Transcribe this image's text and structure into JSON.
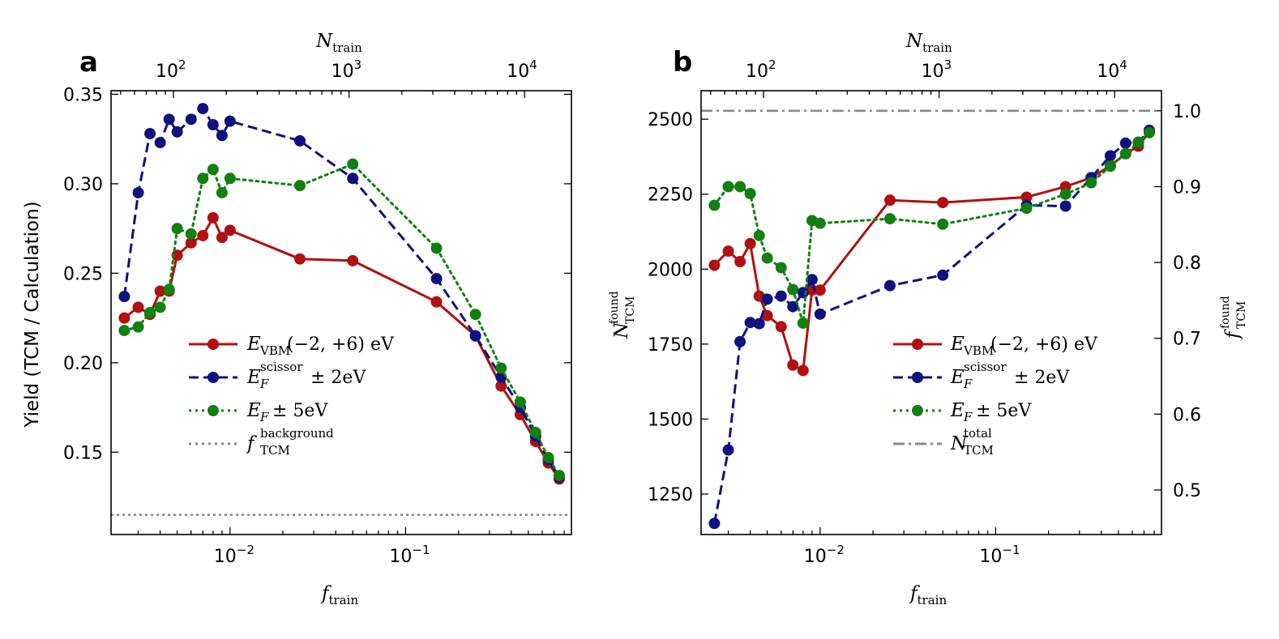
{
  "colors": {
    "red": "#b01010",
    "blue": "#101080",
    "green": "#108010",
    "gray": "#8a8a8a"
  },
  "labels": {
    "ntrain_main": "N",
    "ntrain_sub": "train",
    "ftrain_main": "f",
    "ftrain_sub": "train",
    "top_tick_base": "10",
    "top_tick_exps": [
      "2",
      "3",
      "4"
    ],
    "bottom_tick_base": "10",
    "bottom_tick_exps": [
      "−2",
      "−1"
    ]
  },
  "chart_data": [
    {
      "panel": "a",
      "type": "line",
      "x_scale": "log",
      "xlabel": "f_train",
      "ylabel": "Yield (TCM / Calculation)",
      "top_xlabel": "N_train",
      "xlim": [
        0.0021,
        0.88
      ],
      "ylim": [
        0.104,
        0.352
      ],
      "yticks": [
        "0.15",
        "0.20",
        "0.25",
        "0.30",
        "0.35"
      ],
      "ytick_values": [
        0.15,
        0.2,
        0.25,
        0.3,
        0.35
      ],
      "series": [
        {
          "name": "E_VBM (−2, +6) eV",
          "color": "#b01010",
          "style": "solid",
          "x": [
            0.0025,
            0.003,
            0.0035,
            0.004,
            0.0045,
            0.005,
            0.006,
            0.007,
            0.008,
            0.009,
            0.01,
            0.025,
            0.05,
            0.15,
            0.25,
            0.35,
            0.45,
            0.55,
            0.65,
            0.75
          ],
          "values": [
            0.225,
            0.231,
            0.227,
            0.24,
            0.24,
            0.26,
            0.267,
            0.271,
            0.281,
            0.27,
            0.274,
            0.258,
            0.257,
            0.234,
            0.215,
            0.187,
            0.171,
            0.156,
            0.144,
            0.135
          ]
        },
        {
          "name": "E_F^scissor ± 2eV",
          "color": "#101080",
          "style": "dashed",
          "x": [
            0.0025,
            0.003,
            0.0035,
            0.004,
            0.0045,
            0.005,
            0.006,
            0.007,
            0.008,
            0.009,
            0.01,
            0.025,
            0.05,
            0.15,
            0.25,
            0.35,
            0.45,
            0.55,
            0.65,
            0.75
          ],
          "values": [
            0.237,
            0.295,
            0.328,
            0.323,
            0.336,
            0.329,
            0.336,
            0.342,
            0.333,
            0.327,
            0.335,
            0.324,
            0.303,
            0.247,
            0.215,
            0.192,
            0.175,
            0.159,
            0.146,
            0.136
          ]
        },
        {
          "name": "E_F ± 5eV",
          "color": "#108010",
          "style": "dotted",
          "x": [
            0.0025,
            0.003,
            0.0035,
            0.004,
            0.0045,
            0.005,
            0.006,
            0.007,
            0.008,
            0.009,
            0.01,
            0.025,
            0.05,
            0.15,
            0.25,
            0.35,
            0.45,
            0.55,
            0.65,
            0.75
          ],
          "values": [
            0.218,
            0.22,
            0.228,
            0.231,
            0.241,
            0.275,
            0.272,
            0.303,
            0.308,
            0.295,
            0.303,
            0.299,
            0.311,
            0.264,
            0.227,
            0.197,
            0.178,
            0.161,
            0.147,
            0.137
          ]
        },
        {
          "name": "f_TCM^background",
          "color": "#8a8a8a",
          "style": "hline-dotted",
          "values": [
            0.115
          ]
        }
      ],
      "legend": {
        "position": "center-bottom",
        "entries": [
          {
            "main": "E",
            "sub": "VBM",
            "sup": "",
            "tail": "(−2, +6) eV",
            "style": "solid",
            "color": "#b01010",
            "marker": true
          },
          {
            "main": "E",
            "sub": "F",
            "sup": "scissor",
            "tail": "± 2eV",
            "style": "dashed",
            "color": "#101080",
            "marker": true
          },
          {
            "main": "E",
            "sub": "F",
            "sup": "",
            "tail": "± 5eV",
            "style": "dotted",
            "color": "#108010",
            "marker": true
          },
          {
            "main": "f",
            "sub": "TCM",
            "sup": "background",
            "tail": "",
            "style": "dotted",
            "color": "#8a8a8a",
            "marker": false
          }
        ]
      }
    },
    {
      "panel": "b",
      "type": "line",
      "x_scale": "log",
      "xlabel": "f_train",
      "ylabel": "N_TCM^found",
      "right_ylabel": "f_TCM^found",
      "top_xlabel": "N_train",
      "xlim": [
        0.0021,
        0.88
      ],
      "ylim": [
        1115,
        2595
      ],
      "yticks": [
        "1250",
        "1500",
        "1750",
        "2000",
        "2250",
        "2500"
      ],
      "ytick_values": [
        1250,
        1500,
        1750,
        2000,
        2250,
        2500
      ],
      "right_yticks": [
        "0.5",
        "0.6",
        "0.7",
        "0.8",
        "0.9",
        "1.0"
      ],
      "right_ytick_values": [
        1263.5,
        1516.4,
        1769.3,
        2022.2,
        2275.1,
        2528
      ],
      "series": [
        {
          "name": "E_VBM (−2, +6) eV",
          "color": "#b01010",
          "style": "solid",
          "x": [
            0.0025,
            0.003,
            0.0035,
            0.004,
            0.0045,
            0.005,
            0.006,
            0.007,
            0.008,
            0.009,
            0.01,
            0.025,
            0.05,
            0.15,
            0.25,
            0.35,
            0.45,
            0.55,
            0.65,
            0.75
          ],
          "values": [
            2013,
            2060,
            2025,
            2085,
            1910,
            1845,
            1808,
            1680,
            1662,
            1930,
            1930,
            2230,
            2222,
            2240,
            2275,
            2305,
            2345,
            2385,
            2410,
            2458
          ]
        },
        {
          "name": "E_F^scissor ± 2eV",
          "color": "#101080",
          "style": "dashed",
          "x": [
            0.0025,
            0.003,
            0.0035,
            0.004,
            0.0045,
            0.005,
            0.006,
            0.007,
            0.008,
            0.009,
            0.01,
            0.025,
            0.05,
            0.15,
            0.25,
            0.35,
            0.45,
            0.55,
            0.65,
            0.75
          ],
          "values": [
            1152,
            1397,
            1758,
            1822,
            1818,
            1900,
            1910,
            1875,
            1922,
            1965,
            1850,
            1945,
            1980,
            2213,
            2210,
            2305,
            2378,
            2420,
            2423,
            2463
          ]
        },
        {
          "name": "E_F ± 5eV",
          "color": "#108010",
          "style": "dotted",
          "x": [
            0.0025,
            0.003,
            0.0035,
            0.004,
            0.0045,
            0.005,
            0.006,
            0.007,
            0.008,
            0.009,
            0.01,
            0.025,
            0.05,
            0.15,
            0.25,
            0.35,
            0.45,
            0.55,
            0.65,
            0.75
          ],
          "values": [
            2213,
            2275,
            2275,
            2252,
            2112,
            2037,
            2005,
            1932,
            1820,
            2162,
            2153,
            2168,
            2150,
            2203,
            2250,
            2288,
            2343,
            2385,
            2422,
            2455
          ]
        },
        {
          "name": "N_TCM^total",
          "color": "#8a8a8a",
          "style": "hline-dashdot",
          "values": [
            2528
          ]
        }
      ],
      "legend": {
        "position": "right-bottom",
        "entries": [
          {
            "main": "E",
            "sub": "VBM",
            "sup": "",
            "tail": "(−2, +6) eV",
            "style": "solid",
            "color": "#b01010",
            "marker": true
          },
          {
            "main": "E",
            "sub": "F",
            "sup": "scissor",
            "tail": "± 2eV",
            "style": "dashed",
            "color": "#101080",
            "marker": true
          },
          {
            "main": "E",
            "sub": "F",
            "sup": "",
            "tail": "± 5eV",
            "style": "dotted",
            "color": "#108010",
            "marker": true
          },
          {
            "main": "N",
            "sub": "TCM",
            "sup": "total",
            "tail": "",
            "style": "dashdot",
            "color": "#8a8a8a",
            "marker": false
          }
        ]
      }
    }
  ],
  "panels": [
    {
      "letter": "a",
      "ylabel": "Yield (TCM / Calculation)"
    },
    {
      "letter": "b",
      "ylabel_main": "N",
      "ylabel_sub": "TCM",
      "ylabel_sup": "found",
      "right_ylabel_main": "f",
      "right_ylabel_sub": "TCM",
      "right_ylabel_sup": "found"
    }
  ]
}
